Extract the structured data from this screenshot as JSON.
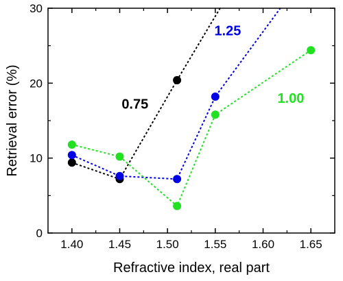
{
  "chart_data": {
    "type": "scatter",
    "xlabel": "Refractive index, real part",
    "ylabel": "Retrieval error (%)",
    "xlim": [
      1.375,
      1.675
    ],
    "ylim": [
      0,
      30
    ],
    "x_ticks": [
      1.4,
      1.45,
      1.5,
      1.55,
      1.6,
      1.65
    ],
    "x_tick_labels": [
      "1.40",
      "1.45",
      "1.50",
      "1.55",
      "1.60",
      "1.65"
    ],
    "y_ticks": [
      0,
      10,
      20,
      30
    ],
    "y_tick_labels": [
      "0",
      "10",
      "20",
      "30"
    ],
    "grid": false,
    "series": [
      {
        "name": "0.75",
        "color": "#000000",
        "points": [
          [
            1.4,
            9.4
          ],
          [
            1.45,
            7.2
          ],
          [
            1.51,
            20.4
          ]
        ],
        "extend_to": [
          1.555,
          30
        ]
      },
      {
        "name": "1.25",
        "color": "#0000e6",
        "points": [
          [
            1.4,
            10.4
          ],
          [
            1.45,
            7.6
          ],
          [
            1.51,
            7.2
          ],
          [
            1.55,
            18.2
          ]
        ],
        "extend_to": [
          1.618,
          30
        ]
      },
      {
        "name": "1.00",
        "color": "#22e022",
        "points": [
          [
            1.4,
            11.8
          ],
          [
            1.45,
            10.2
          ],
          [
            1.51,
            3.6
          ],
          [
            1.55,
            15.8
          ],
          [
            1.65,
            24.4
          ]
        ]
      }
    ],
    "annotations": [
      {
        "text": "0.75",
        "series": 0,
        "x": 1.466,
        "y": 16.6,
        "color": "#000000"
      },
      {
        "text": "1.25",
        "series": 1,
        "x": 1.563,
        "y": 26.4,
        "color": "#0000e6"
      },
      {
        "text": "1.00",
        "series": 2,
        "x": 1.629,
        "y": 17.4,
        "color": "#22e022"
      }
    ]
  }
}
